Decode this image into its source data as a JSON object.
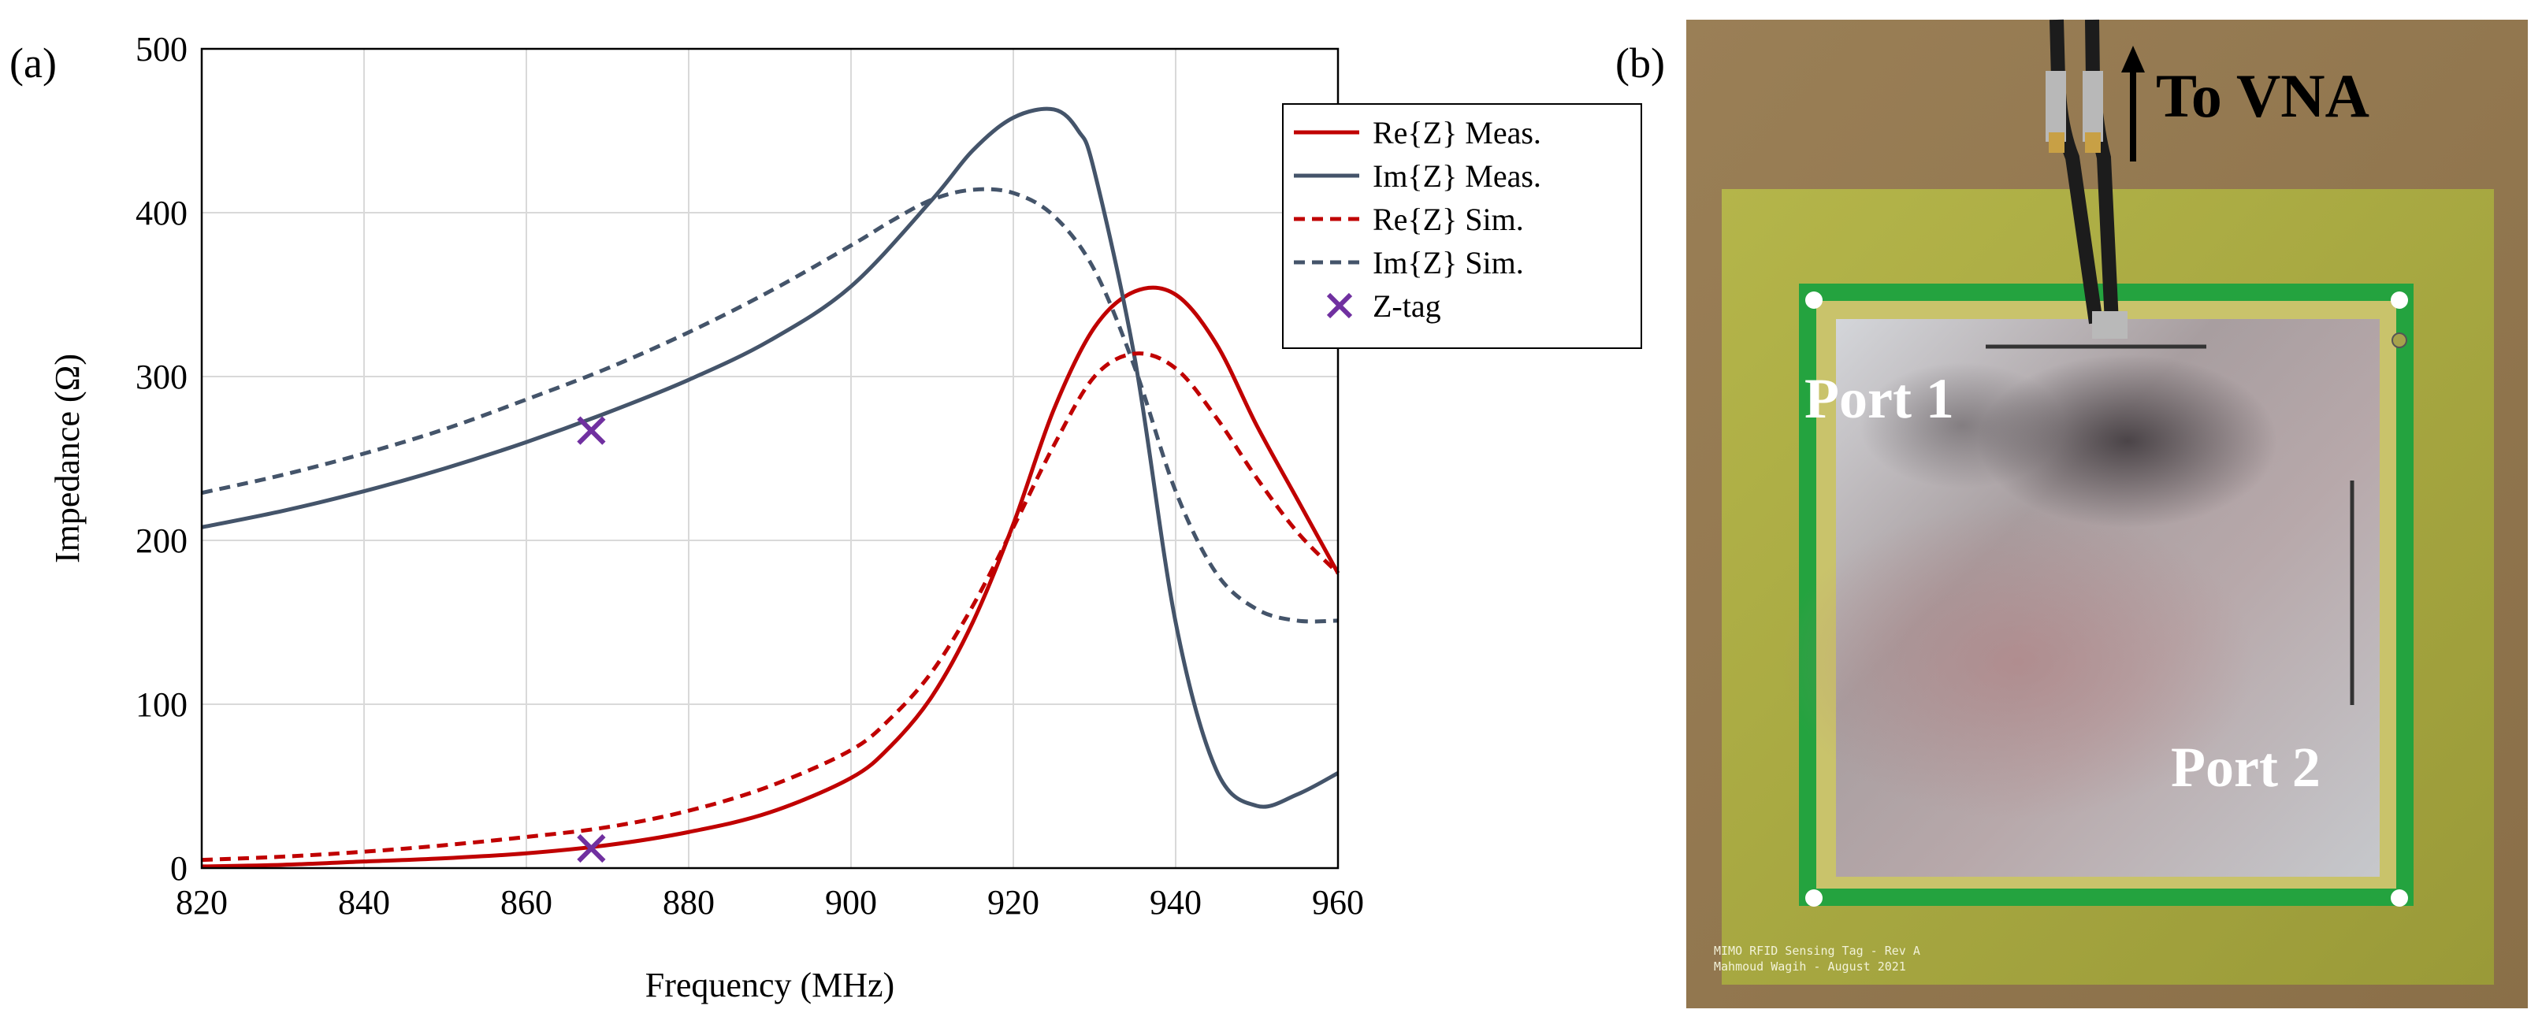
{
  "panel_a_label": "(a)",
  "panel_b_label": "(b)",
  "chart_data": {
    "type": "line",
    "title": "",
    "xlabel": "Frequency (MHz)",
    "ylabel": "Impedance (Ω)",
    "xlim": [
      820,
      960
    ],
    "ylim": [
      0,
      500
    ],
    "xticks": [
      820,
      840,
      860,
      880,
      900,
      920,
      940,
      960
    ],
    "yticks": [
      0,
      100,
      200,
      300,
      400,
      500
    ],
    "grid": true,
    "legend_position": "top-right",
    "series": [
      {
        "name": "Re{Z} Meas.",
        "color": "#c00000",
        "dash": "solid",
        "x": [
          820,
          830,
          840,
          850,
          860,
          870,
          880,
          890,
          900,
          905,
          910,
          915,
          920,
          925,
          930,
          935,
          940,
          945,
          950,
          955,
          960
        ],
        "y": [
          1,
          2,
          4,
          6,
          9,
          14,
          22,
          34,
          55,
          75,
          105,
          150,
          210,
          280,
          330,
          352,
          350,
          320,
          270,
          225,
          180
        ]
      },
      {
        "name": "Im{Z} Meas.",
        "color": "#44546a",
        "dash": "solid",
        "x": [
          820,
          830,
          840,
          850,
          860,
          870,
          880,
          890,
          900,
          910,
          915,
          920,
          925,
          928,
          930,
          935,
          940,
          945,
          950,
          955,
          960
        ],
        "y": [
          208,
          218,
          230,
          244,
          260,
          278,
          298,
          322,
          355,
          408,
          438,
          458,
          463,
          450,
          425,
          310,
          150,
          60,
          38,
          45,
          58
        ]
      },
      {
        "name": "Re{Z} Sim.",
        "color": "#c00000",
        "dash": "dashed",
        "x": [
          820,
          830,
          840,
          850,
          860,
          870,
          880,
          890,
          900,
          905,
          910,
          915,
          920,
          925,
          930,
          935,
          940,
          945,
          950,
          955,
          960
        ],
        "y": [
          5,
          7,
          10,
          14,
          19,
          25,
          35,
          50,
          72,
          92,
          120,
          160,
          208,
          258,
          300,
          314,
          305,
          275,
          238,
          205,
          180
        ]
      },
      {
        "name": "Im{Z} Sim.",
        "color": "#44546a",
        "dash": "dashed",
        "x": [
          820,
          830,
          840,
          850,
          860,
          870,
          880,
          890,
          900,
          905,
          910,
          915,
          920,
          925,
          930,
          935,
          940,
          945,
          950,
          955,
          960
        ],
        "y": [
          229,
          240,
          253,
          268,
          286,
          305,
          327,
          352,
          380,
          395,
          408,
          414,
          412,
          398,
          365,
          305,
          230,
          180,
          158,
          151,
          151
        ]
      }
    ],
    "markers": {
      "name": "Z-tag",
      "color": "#7030a0",
      "points": [
        {
          "x": 868,
          "y": 267
        },
        {
          "x": 868,
          "y": 12
        }
      ]
    }
  },
  "photo": {
    "arrow_label": "To VNA",
    "port1_label": "Port 1",
    "port2_label": "Port 2",
    "pcb_text_line1": "MIMO RFID Sensing Tag - Rev A",
    "pcb_text_line2": "Mahmoud Wagih - August 2021"
  }
}
